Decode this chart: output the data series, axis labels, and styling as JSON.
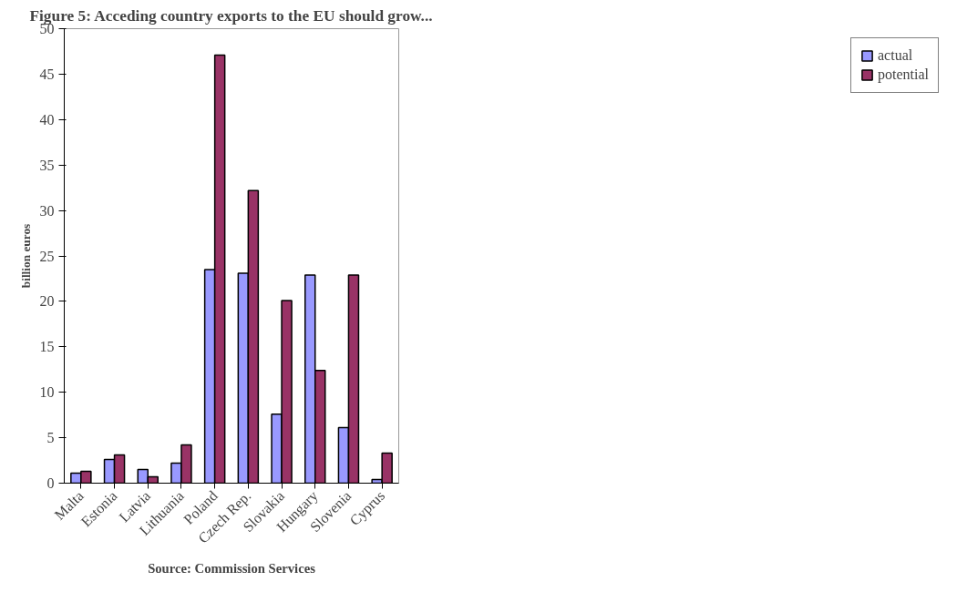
{
  "chart_data": {
    "type": "bar",
    "title": "Figure 5: Acceding country exports to the EU should grow...",
    "ylabel": "billion euros",
    "categories": [
      "Malta",
      "Estonia",
      "Latvia",
      "Lithuania",
      "Poland",
      "Czech Rep.",
      "Slovakia",
      "Hungary",
      "Slovenia",
      "Cyprus"
    ],
    "series": [
      {
        "name": "actual",
        "color": "#9999ff",
        "values": [
          1.1,
          2.6,
          1.5,
          2.2,
          23.5,
          23.1,
          7.6,
          22.9,
          6.1,
          0.4
        ]
      },
      {
        "name": "potential",
        "color": "#993366",
        "values": [
          1.3,
          3.1,
          0.7,
          4.2,
          47.1,
          32.2,
          20.1,
          12.4,
          22.9,
          3.3
        ]
      }
    ],
    "ylim": [
      0,
      50
    ],
    "yticks": [
      0,
      5,
      10,
      15,
      20,
      25,
      30,
      35,
      40,
      45,
      50
    ],
    "grid": false,
    "legend": "right",
    "annotations": [
      "Source: Commission Services"
    ]
  }
}
